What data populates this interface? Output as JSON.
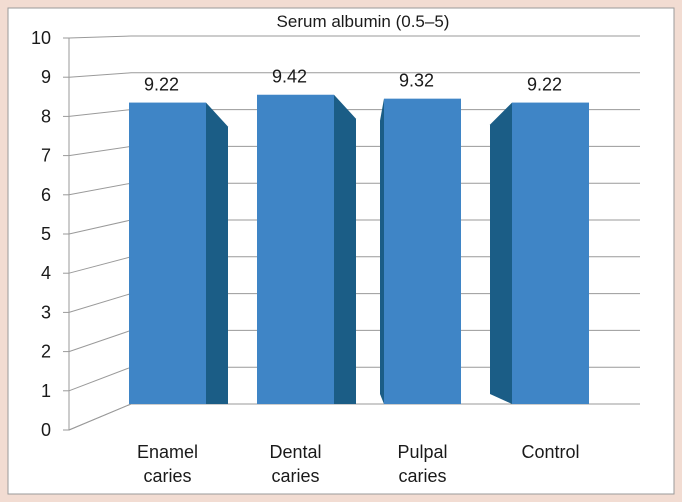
{
  "chart_data": {
    "type": "bar",
    "title": "Serum albumin (0.5–5)",
    "categories": [
      [
        "Enamel",
        "caries"
      ],
      [
        "Dental",
        "caries"
      ],
      [
        "Pulpal",
        "caries"
      ],
      [
        "Control"
      ]
    ],
    "values": [
      9.22,
      9.42,
      9.32,
      9.22
    ],
    "value_labels": [
      "9.22",
      "9.42",
      "9.32",
      "9.22"
    ],
    "yticks": [
      "0",
      "1",
      "2",
      "3",
      "4",
      "5",
      "6",
      "7",
      "8",
      "9",
      "10"
    ],
    "ylim": [
      0,
      10
    ],
    "grid": true,
    "style": "3d",
    "colors": {
      "bar_front": "#3f85c6",
      "bar_side": "#1b5d86",
      "grid": "#9a9a9a",
      "plot_bg": "#ffffff",
      "page_bg": "#f2dcd2"
    }
  }
}
